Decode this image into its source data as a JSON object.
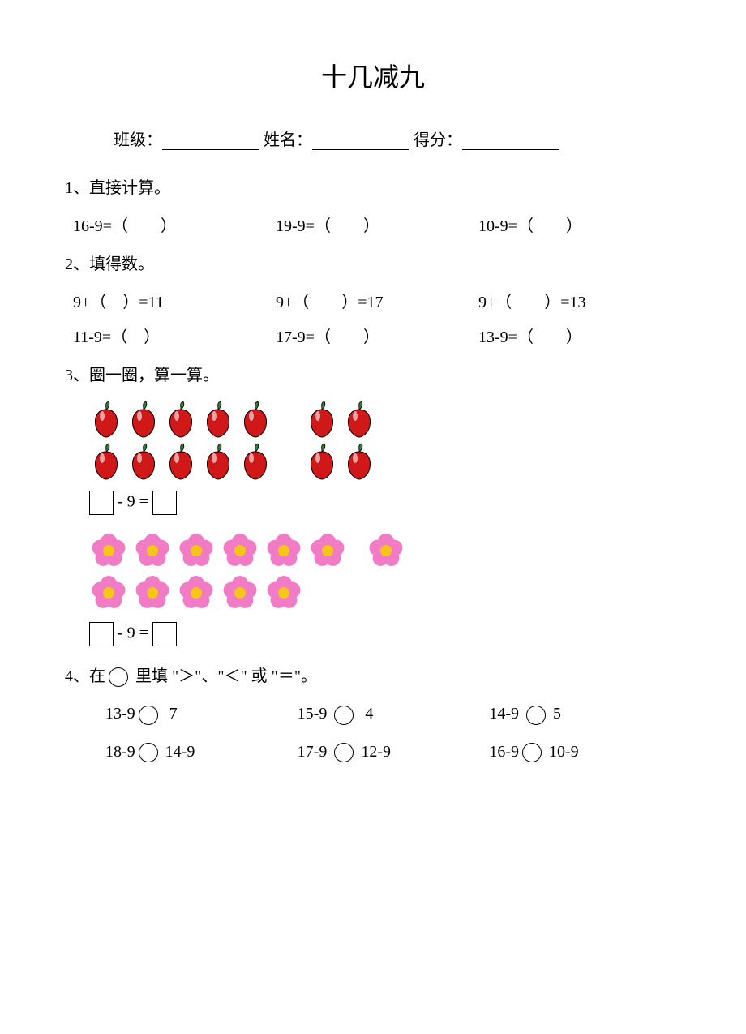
{
  "title": "十几减九",
  "header": {
    "class_label": "班级：",
    "name_label": "姓名：",
    "score_label": "得分："
  },
  "q1": {
    "heading": "1、直接计算。",
    "items": [
      "16-9=（　　）",
      "19-9=（　　）",
      "10-9=（　　）"
    ]
  },
  "q2": {
    "heading": "2、填得数。",
    "row1": [
      "9+（　）=11",
      "9+（　　）=17",
      "9+（　　）=13"
    ],
    "row2": [
      "11-9=（　）",
      "17-9=（　　）",
      "13-9=（　　）"
    ]
  },
  "q3": {
    "heading": "3、圈一圈，算一算。",
    "peppers": {
      "group1_per_row": 5,
      "group2_per_row": 2,
      "rows": 2,
      "total": 14,
      "color": "#d01818",
      "stem_color": "#2e7d2e"
    },
    "flowers": {
      "row1": 7,
      "row2": 5,
      "total": 12,
      "petal_color": "#f27bc5",
      "center_color": "#f5c518"
    },
    "eqn_text": " - 9 = "
  },
  "q4": {
    "heading": "4、在　　里填 \"＞\"、\"＜\" 或 \"＝\"。",
    "row1": [
      {
        "l": "13-9",
        "r": "7"
      },
      {
        "l": "15-9",
        "r": "4"
      },
      {
        "l": "14-9",
        "r": "5"
      }
    ],
    "row2": [
      {
        "l": "18-9",
        "r": "14-9"
      },
      {
        "l": "17-9",
        "r": "12-9"
      },
      {
        "l": "16-9",
        "r": "10-9"
      }
    ]
  },
  "colors": {
    "text": "#000000",
    "bg": "#ffffff"
  }
}
